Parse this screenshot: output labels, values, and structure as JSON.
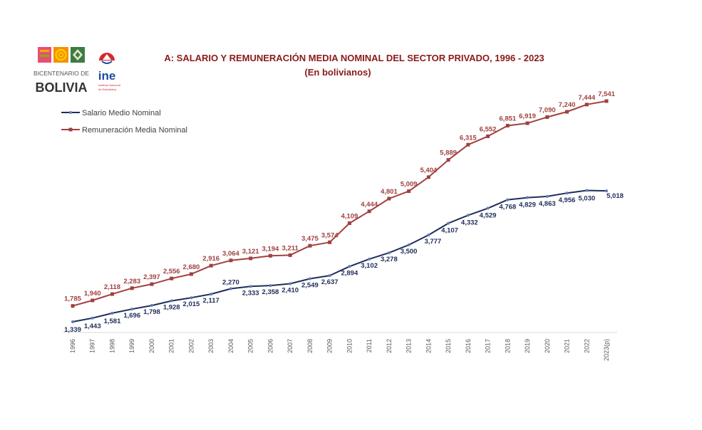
{
  "logos": {
    "bicentenario_line1": "BICENTENARIO DE",
    "bicentenario_line2": "BOLIVIA",
    "ine_name": "ine",
    "ine_sub1": "Instituto Nacional",
    "ine_sub2": "de Estadística"
  },
  "colors": {
    "salario": "#1F2D5A",
    "remuneracion": "#A0403F",
    "title": "#8B1A1A",
    "axis": "#D9D9D9"
  },
  "chart_data": {
    "type": "line",
    "title": "A: SALARIO Y REMUNERACIÓN MEDIA NOMINAL DEL SECTOR PRIVADO, 1996 - 2023",
    "subtitle": "(En bolivianos)",
    "xlabel": "",
    "ylabel": "",
    "legend_position": "top-left",
    "grid": false,
    "ylim": [
      1339,
      7541
    ],
    "categories": [
      "1996",
      "1997",
      "1998",
      "1999",
      "2000",
      "2001",
      "2002",
      "2003",
      "2004",
      "2005",
      "2006",
      "2007",
      "2008",
      "2009",
      "2010",
      "2011",
      "2012",
      "2013",
      "2014",
      "2015",
      "2016",
      "2017",
      "2018",
      "2019",
      "2020",
      "2021",
      "2022",
      "2023(p)"
    ],
    "series": [
      {
        "name": "Salario Medio Nominal",
        "values": [
          1339,
          1443,
          1581,
          1696,
          1798,
          1928,
          2015,
          2117,
          2270,
          2333,
          2358,
          2410,
          2549,
          2637,
          2894,
          3102,
          3278,
          3500,
          3777,
          4107,
          4332,
          4529,
          4768,
          4829,
          4863,
          4956,
          5030,
          5018
        ],
        "labels": [
          "1,339",
          "1,443",
          "1,581",
          "1,696",
          "1,798",
          "1,928",
          "2,015",
          "2,117",
          "2,270",
          "2,333",
          "2,358",
          "2,410",
          "2,549",
          "2,637",
          "2,894",
          "3,102",
          "3,278",
          "3,500",
          "3,777",
          "4,107",
          "4,332",
          "4,529",
          "4,768",
          "4,829",
          "4,863",
          "4,956",
          "5,030",
          "5,018"
        ]
      },
      {
        "name": "Remuneración Media Nominal",
        "values": [
          1785,
          1940,
          2118,
          2283,
          2397,
          2556,
          2680,
          2916,
          3064,
          3121,
          3194,
          3211,
          3475,
          3574,
          4109,
          4444,
          4801,
          5009,
          5404,
          5889,
          6315,
          6552,
          6851,
          6919,
          7090,
          7240,
          7444,
          7541
        ],
        "labels": [
          "1,785",
          "1,940",
          "2,118",
          "2,283",
          "2,397",
          "2,556",
          "2,680",
          "2,916",
          "3,064",
          "3,121",
          "3,194",
          "3,211",
          "3,475",
          "3,574",
          "4,109",
          "4,444",
          "4,801",
          "5,009",
          "5,404",
          "5,889",
          "6,315",
          "6,552",
          "6,851",
          "6,919",
          "7,090",
          "7,240",
          "7,444",
          "7,541"
        ]
      }
    ]
  }
}
